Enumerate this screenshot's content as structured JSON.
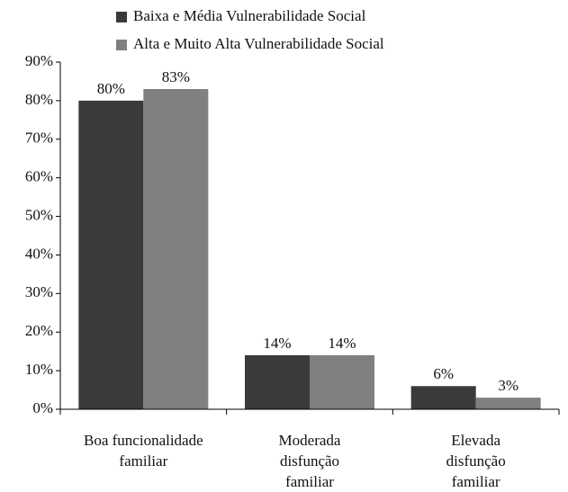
{
  "chart_data": {
    "type": "bar",
    "categories": [
      [
        "Boa funcionalidade",
        "familiar"
      ],
      [
        "Moderada",
        "disfunção",
        "familiar"
      ],
      [
        "Elevada",
        "disfunção",
        "familiar"
      ]
    ],
    "series": [
      {
        "name": "Baixa e Média Vulnerabilidade Social",
        "color": "#3a3a3a",
        "values": [
          80,
          14,
          6
        ],
        "value_labels": [
          "80%",
          "14%",
          "6%"
        ]
      },
      {
        "name": "Alta e Muito Alta Vulnerabilidade Social",
        "color": "#808080",
        "values": [
          83,
          14,
          3
        ],
        "value_labels": [
          "83%",
          "14%",
          "3%"
        ]
      }
    ],
    "ylim": [
      0,
      90
    ],
    "yticks": [
      {
        "value": 0,
        "label": "0%"
      },
      {
        "value": 10,
        "label": "10%"
      },
      {
        "value": 20,
        "label": "20%"
      },
      {
        "value": 30,
        "label": "30%"
      },
      {
        "value": 40,
        "label": "40%"
      },
      {
        "value": 50,
        "label": "50%"
      },
      {
        "value": 60,
        "label": "60%"
      },
      {
        "value": 70,
        "label": "70%"
      },
      {
        "value": 80,
        "label": "80%"
      },
      {
        "value": 90,
        "label": "90%"
      }
    ],
    "legend": "top"
  }
}
